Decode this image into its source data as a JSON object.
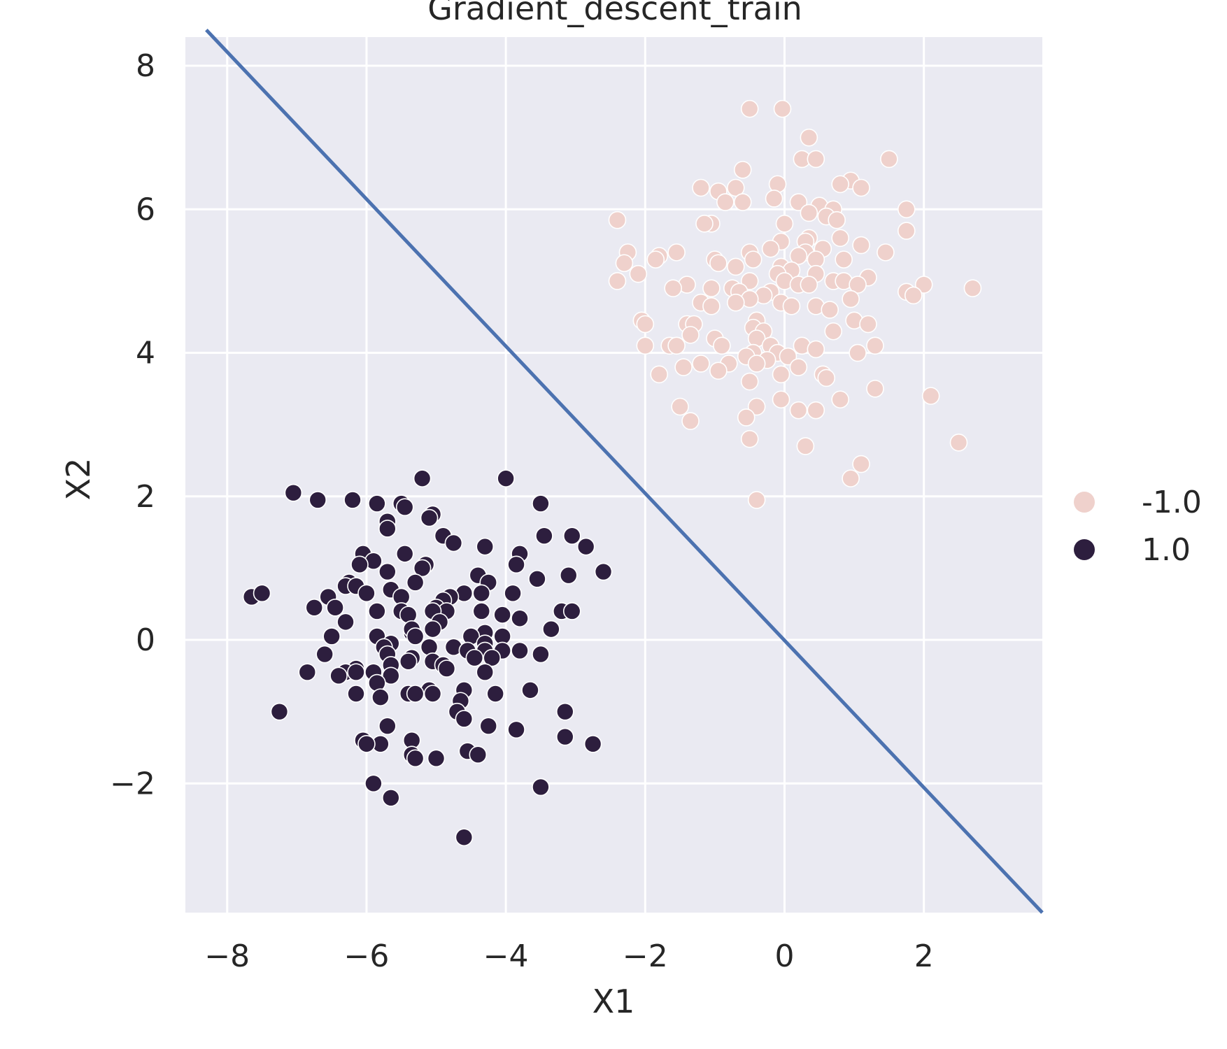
{
  "chart_data": {
    "type": "scatter",
    "title": "Gradient_descent_train",
    "xlabel": "X1",
    "ylabel": "X2",
    "xlim": [
      -8.6,
      3.7
    ],
    "ylim": [
      -3.8,
      8.4
    ],
    "xticks": [
      -8,
      -6,
      -4,
      -2,
      0,
      2
    ],
    "yticks": [
      -2,
      0,
      2,
      4,
      6,
      8
    ],
    "xtick_labels": [
      "−8",
      "−6",
      "−4",
      "−2",
      "0",
      "2"
    ],
    "ytick_labels": [
      "−2",
      "0",
      "2",
      "4",
      "6",
      "8"
    ],
    "grid": true,
    "legend_position": "right",
    "decision_boundary": {
      "x": [
        -8.3,
        3.7
      ],
      "y": [
        8.5,
        -3.8
      ]
    },
    "colors": {
      "background": "#eaeaf2",
      "boundary": "#4c72b0",
      "neg": "#efd1cc",
      "pos": "#2d1e3e"
    },
    "series": [
      {
        "name": "-1.0",
        "color": "#efd1cc",
        "points": [
          [
            -0.5,
            7.4
          ],
          [
            -0.03,
            7.4
          ],
          [
            0.35,
            7.0
          ],
          [
            1.5,
            6.7
          ],
          [
            0.25,
            6.7
          ],
          [
            0.45,
            6.7
          ],
          [
            -0.6,
            6.55
          ],
          [
            0.95,
            6.4
          ],
          [
            0.8,
            6.35
          ],
          [
            1.1,
            6.3
          ],
          [
            -0.1,
            6.35
          ],
          [
            -1.2,
            6.3
          ],
          [
            -0.7,
            6.3
          ],
          [
            -0.95,
            6.25
          ],
          [
            -0.15,
            6.15
          ],
          [
            -0.6,
            6.1
          ],
          [
            0.2,
            6.1
          ],
          [
            -0.85,
            6.1
          ],
          [
            0.5,
            6.05
          ],
          [
            0.7,
            6.0
          ],
          [
            1.75,
            6.0
          ],
          [
            0.35,
            5.95
          ],
          [
            0.6,
            5.9
          ],
          [
            0.75,
            5.85
          ],
          [
            -2.4,
            5.85
          ],
          [
            -1.05,
            5.8
          ],
          [
            -1.15,
            5.8
          ],
          [
            0.0,
            5.8
          ],
          [
            0.35,
            5.6
          ],
          [
            0.8,
            5.6
          ],
          [
            1.75,
            5.7
          ],
          [
            -0.05,
            5.55
          ],
          [
            0.3,
            5.55
          ],
          [
            1.1,
            5.5
          ],
          [
            -2.25,
            5.4
          ],
          [
            -1.55,
            5.4
          ],
          [
            -0.5,
            5.4
          ],
          [
            -0.2,
            5.45
          ],
          [
            0.55,
            5.45
          ],
          [
            1.45,
            5.4
          ],
          [
            0.3,
            5.4
          ],
          [
            -1.8,
            5.35
          ],
          [
            -1.85,
            5.3
          ],
          [
            -1.0,
            5.3
          ],
          [
            -0.45,
            5.3
          ],
          [
            0.2,
            5.35
          ],
          [
            0.45,
            5.3
          ],
          [
            0.85,
            5.3
          ],
          [
            -2.3,
            5.25
          ],
          [
            -0.95,
            5.25
          ],
          [
            -0.7,
            5.2
          ],
          [
            -0.05,
            5.2
          ],
          [
            0.1,
            5.15
          ],
          [
            -2.1,
            5.1
          ],
          [
            -0.1,
            5.1
          ],
          [
            0.45,
            5.1
          ],
          [
            1.2,
            5.05
          ],
          [
            -2.4,
            5.0
          ],
          [
            -0.5,
            5.0
          ],
          [
            0.0,
            5.0
          ],
          [
            0.7,
            5.0
          ],
          [
            0.85,
            5.0
          ],
          [
            -1.4,
            4.95
          ],
          [
            -1.05,
            4.9
          ],
          [
            -0.75,
            4.9
          ],
          [
            0.2,
            4.95
          ],
          [
            0.35,
            4.95
          ],
          [
            1.05,
            4.95
          ],
          [
            2.0,
            4.95
          ],
          [
            2.7,
            4.9
          ],
          [
            -1.6,
            4.9
          ],
          [
            -0.65,
            4.85
          ],
          [
            -0.2,
            4.85
          ],
          [
            1.75,
            4.85
          ],
          [
            1.85,
            4.8
          ],
          [
            -0.3,
            4.8
          ],
          [
            -0.5,
            4.75
          ],
          [
            0.95,
            4.75
          ],
          [
            -1.2,
            4.7
          ],
          [
            -1.05,
            4.65
          ],
          [
            -0.7,
            4.7
          ],
          [
            -0.05,
            4.7
          ],
          [
            0.1,
            4.65
          ],
          [
            0.45,
            4.65
          ],
          [
            0.65,
            4.6
          ],
          [
            -2.05,
            4.45
          ],
          [
            -2.0,
            4.4
          ],
          [
            -1.4,
            4.4
          ],
          [
            -1.3,
            4.4
          ],
          [
            -0.4,
            4.45
          ],
          [
            1.0,
            4.45
          ],
          [
            1.2,
            4.4
          ],
          [
            -0.45,
            4.35
          ],
          [
            -0.3,
            4.3
          ],
          [
            0.7,
            4.3
          ],
          [
            -1.35,
            4.25
          ],
          [
            -1.0,
            4.2
          ],
          [
            -0.4,
            4.2
          ],
          [
            -2.0,
            4.1
          ],
          [
            -1.65,
            4.1
          ],
          [
            -1.55,
            4.1
          ],
          [
            -0.9,
            4.1
          ],
          [
            -0.2,
            4.1
          ],
          [
            0.25,
            4.1
          ],
          [
            0.45,
            4.05
          ],
          [
            1.3,
            4.1
          ],
          [
            -0.45,
            4.0
          ],
          [
            -0.1,
            4.0
          ],
          [
            1.05,
            4.0
          ],
          [
            -0.55,
            3.95
          ],
          [
            0.05,
            3.95
          ],
          [
            -0.25,
            3.9
          ],
          [
            -1.2,
            3.85
          ],
          [
            -0.8,
            3.85
          ],
          [
            -0.4,
            3.85
          ],
          [
            0.2,
            3.8
          ],
          [
            -1.45,
            3.8
          ],
          [
            -0.95,
            3.75
          ],
          [
            0.55,
            3.7
          ],
          [
            -1.8,
            3.7
          ],
          [
            -0.05,
            3.7
          ],
          [
            0.6,
            3.65
          ],
          [
            -0.5,
            3.6
          ],
          [
            1.3,
            3.5
          ],
          [
            2.1,
            3.4
          ],
          [
            -0.05,
            3.35
          ],
          [
            0.8,
            3.35
          ],
          [
            -1.5,
            3.25
          ],
          [
            -0.4,
            3.25
          ],
          [
            0.2,
            3.2
          ],
          [
            0.45,
            3.2
          ],
          [
            -0.55,
            3.1
          ],
          [
            -1.35,
            3.05
          ],
          [
            -0.5,
            2.8
          ],
          [
            2.5,
            2.75
          ],
          [
            0.3,
            2.7
          ],
          [
            1.1,
            2.45
          ],
          [
            0.95,
            2.25
          ],
          [
            -0.4,
            1.95
          ]
        ]
      },
      {
        "name": "1.0",
        "color": "#2d1e3e",
        "points": [
          [
            -5.2,
            2.25
          ],
          [
            -4.0,
            2.25
          ],
          [
            -7.05,
            2.05
          ],
          [
            -6.7,
            1.95
          ],
          [
            -6.2,
            1.95
          ],
          [
            -5.85,
            1.9
          ],
          [
            -5.5,
            1.9
          ],
          [
            -3.5,
            1.9
          ],
          [
            -5.45,
            1.85
          ],
          [
            -5.05,
            1.75
          ],
          [
            -5.1,
            1.7
          ],
          [
            -5.7,
            1.65
          ],
          [
            -5.7,
            1.55
          ],
          [
            -3.05,
            1.45
          ],
          [
            -3.45,
            1.45
          ],
          [
            -4.9,
            1.45
          ],
          [
            -4.75,
            1.35
          ],
          [
            -2.85,
            1.3
          ],
          [
            -4.3,
            1.3
          ],
          [
            -6.05,
            1.2
          ],
          [
            -5.45,
            1.2
          ],
          [
            -3.8,
            1.2
          ],
          [
            -5.9,
            1.1
          ],
          [
            -6.1,
            1.05
          ],
          [
            -5.15,
            1.05
          ],
          [
            -5.2,
            1.0
          ],
          [
            -3.85,
            1.05
          ],
          [
            -5.7,
            0.95
          ],
          [
            -2.6,
            0.95
          ],
          [
            -3.1,
            0.9
          ],
          [
            -4.4,
            0.9
          ],
          [
            -3.55,
            0.85
          ],
          [
            -6.25,
            0.8
          ],
          [
            -5.3,
            0.8
          ],
          [
            -4.25,
            0.8
          ],
          [
            -6.3,
            0.75
          ],
          [
            -6.15,
            0.75
          ],
          [
            -5.65,
            0.7
          ],
          [
            -6.0,
            0.65
          ],
          [
            -4.6,
            0.65
          ],
          [
            -3.9,
            0.65
          ],
          [
            -4.35,
            0.65
          ],
          [
            -5.5,
            0.6
          ],
          [
            -4.8,
            0.6
          ],
          [
            -7.65,
            0.6
          ],
          [
            -7.5,
            0.65
          ],
          [
            -6.55,
            0.6
          ],
          [
            -4.9,
            0.55
          ],
          [
            -5.0,
            0.45
          ],
          [
            -6.75,
            0.45
          ],
          [
            -6.45,
            0.45
          ],
          [
            -4.85,
            0.4
          ],
          [
            -5.05,
            0.4
          ],
          [
            -5.85,
            0.4
          ],
          [
            -5.5,
            0.4
          ],
          [
            -3.2,
            0.4
          ],
          [
            -3.05,
            0.4
          ],
          [
            -4.35,
            0.4
          ],
          [
            -5.4,
            0.35
          ],
          [
            -4.05,
            0.35
          ],
          [
            -3.8,
            0.3
          ],
          [
            -6.3,
            0.25
          ],
          [
            -4.95,
            0.25
          ],
          [
            -5.05,
            0.15
          ],
          [
            -5.35,
            0.1
          ],
          [
            -5.35,
            0.15
          ],
          [
            -3.35,
            0.15
          ],
          [
            -4.3,
            0.1
          ],
          [
            -4.5,
            0.05
          ],
          [
            -4.05,
            0.05
          ],
          [
            -5.3,
            0.05
          ],
          [
            -6.5,
            0.05
          ],
          [
            -5.85,
            0.05
          ],
          [
            -4.3,
            -0.05
          ],
          [
            -5.65,
            -0.05
          ],
          [
            -5.75,
            -0.1
          ],
          [
            -5.1,
            -0.1
          ],
          [
            -4.75,
            -0.1
          ],
          [
            -4.55,
            -0.15
          ],
          [
            -4.3,
            -0.15
          ],
          [
            -3.8,
            -0.15
          ],
          [
            -3.5,
            -0.2
          ],
          [
            -4.05,
            -0.15
          ],
          [
            -5.7,
            -0.2
          ],
          [
            -6.6,
            -0.2
          ],
          [
            -4.45,
            -0.25
          ],
          [
            -4.2,
            -0.25
          ],
          [
            -5.35,
            -0.25
          ],
          [
            -5.05,
            -0.3
          ],
          [
            -4.9,
            -0.35
          ],
          [
            -5.4,
            -0.3
          ],
          [
            -4.85,
            -0.4
          ],
          [
            -6.15,
            -0.4
          ],
          [
            -5.65,
            -0.35
          ],
          [
            -6.3,
            -0.45
          ],
          [
            -5.9,
            -0.45
          ],
          [
            -6.15,
            -0.45
          ],
          [
            -4.3,
            -0.45
          ],
          [
            -6.85,
            -0.45
          ],
          [
            -6.4,
            -0.5
          ],
          [
            -5.65,
            -0.5
          ],
          [
            -5.85,
            -0.6
          ],
          [
            -4.6,
            -0.7
          ],
          [
            -3.65,
            -0.7
          ],
          [
            -5.1,
            -0.7
          ],
          [
            -5.05,
            -0.75
          ],
          [
            -5.4,
            -0.75
          ],
          [
            -5.3,
            -0.75
          ],
          [
            -6.15,
            -0.75
          ],
          [
            -4.15,
            -0.75
          ],
          [
            -5.8,
            -0.8
          ],
          [
            -4.65,
            -0.85
          ],
          [
            -7.25,
            -1.0
          ],
          [
            -3.15,
            -1.0
          ],
          [
            -4.7,
            -1.0
          ],
          [
            -4.6,
            -1.1
          ],
          [
            -5.7,
            -1.2
          ],
          [
            -4.25,
            -1.2
          ],
          [
            -3.85,
            -1.25
          ],
          [
            -5.35,
            -1.4
          ],
          [
            -3.15,
            -1.35
          ],
          [
            -6.05,
            -1.4
          ],
          [
            -5.8,
            -1.45
          ],
          [
            -6.0,
            -1.45
          ],
          [
            -2.75,
            -1.45
          ],
          [
            -4.55,
            -1.55
          ],
          [
            -5.35,
            -1.6
          ],
          [
            -4.4,
            -1.6
          ],
          [
            -5.3,
            -1.65
          ],
          [
            -5.0,
            -1.65
          ],
          [
            -5.9,
            -2.0
          ],
          [
            -3.5,
            -2.05
          ],
          [
            -5.65,
            -2.2
          ],
          [
            -4.6,
            -2.75
          ]
        ]
      }
    ]
  }
}
